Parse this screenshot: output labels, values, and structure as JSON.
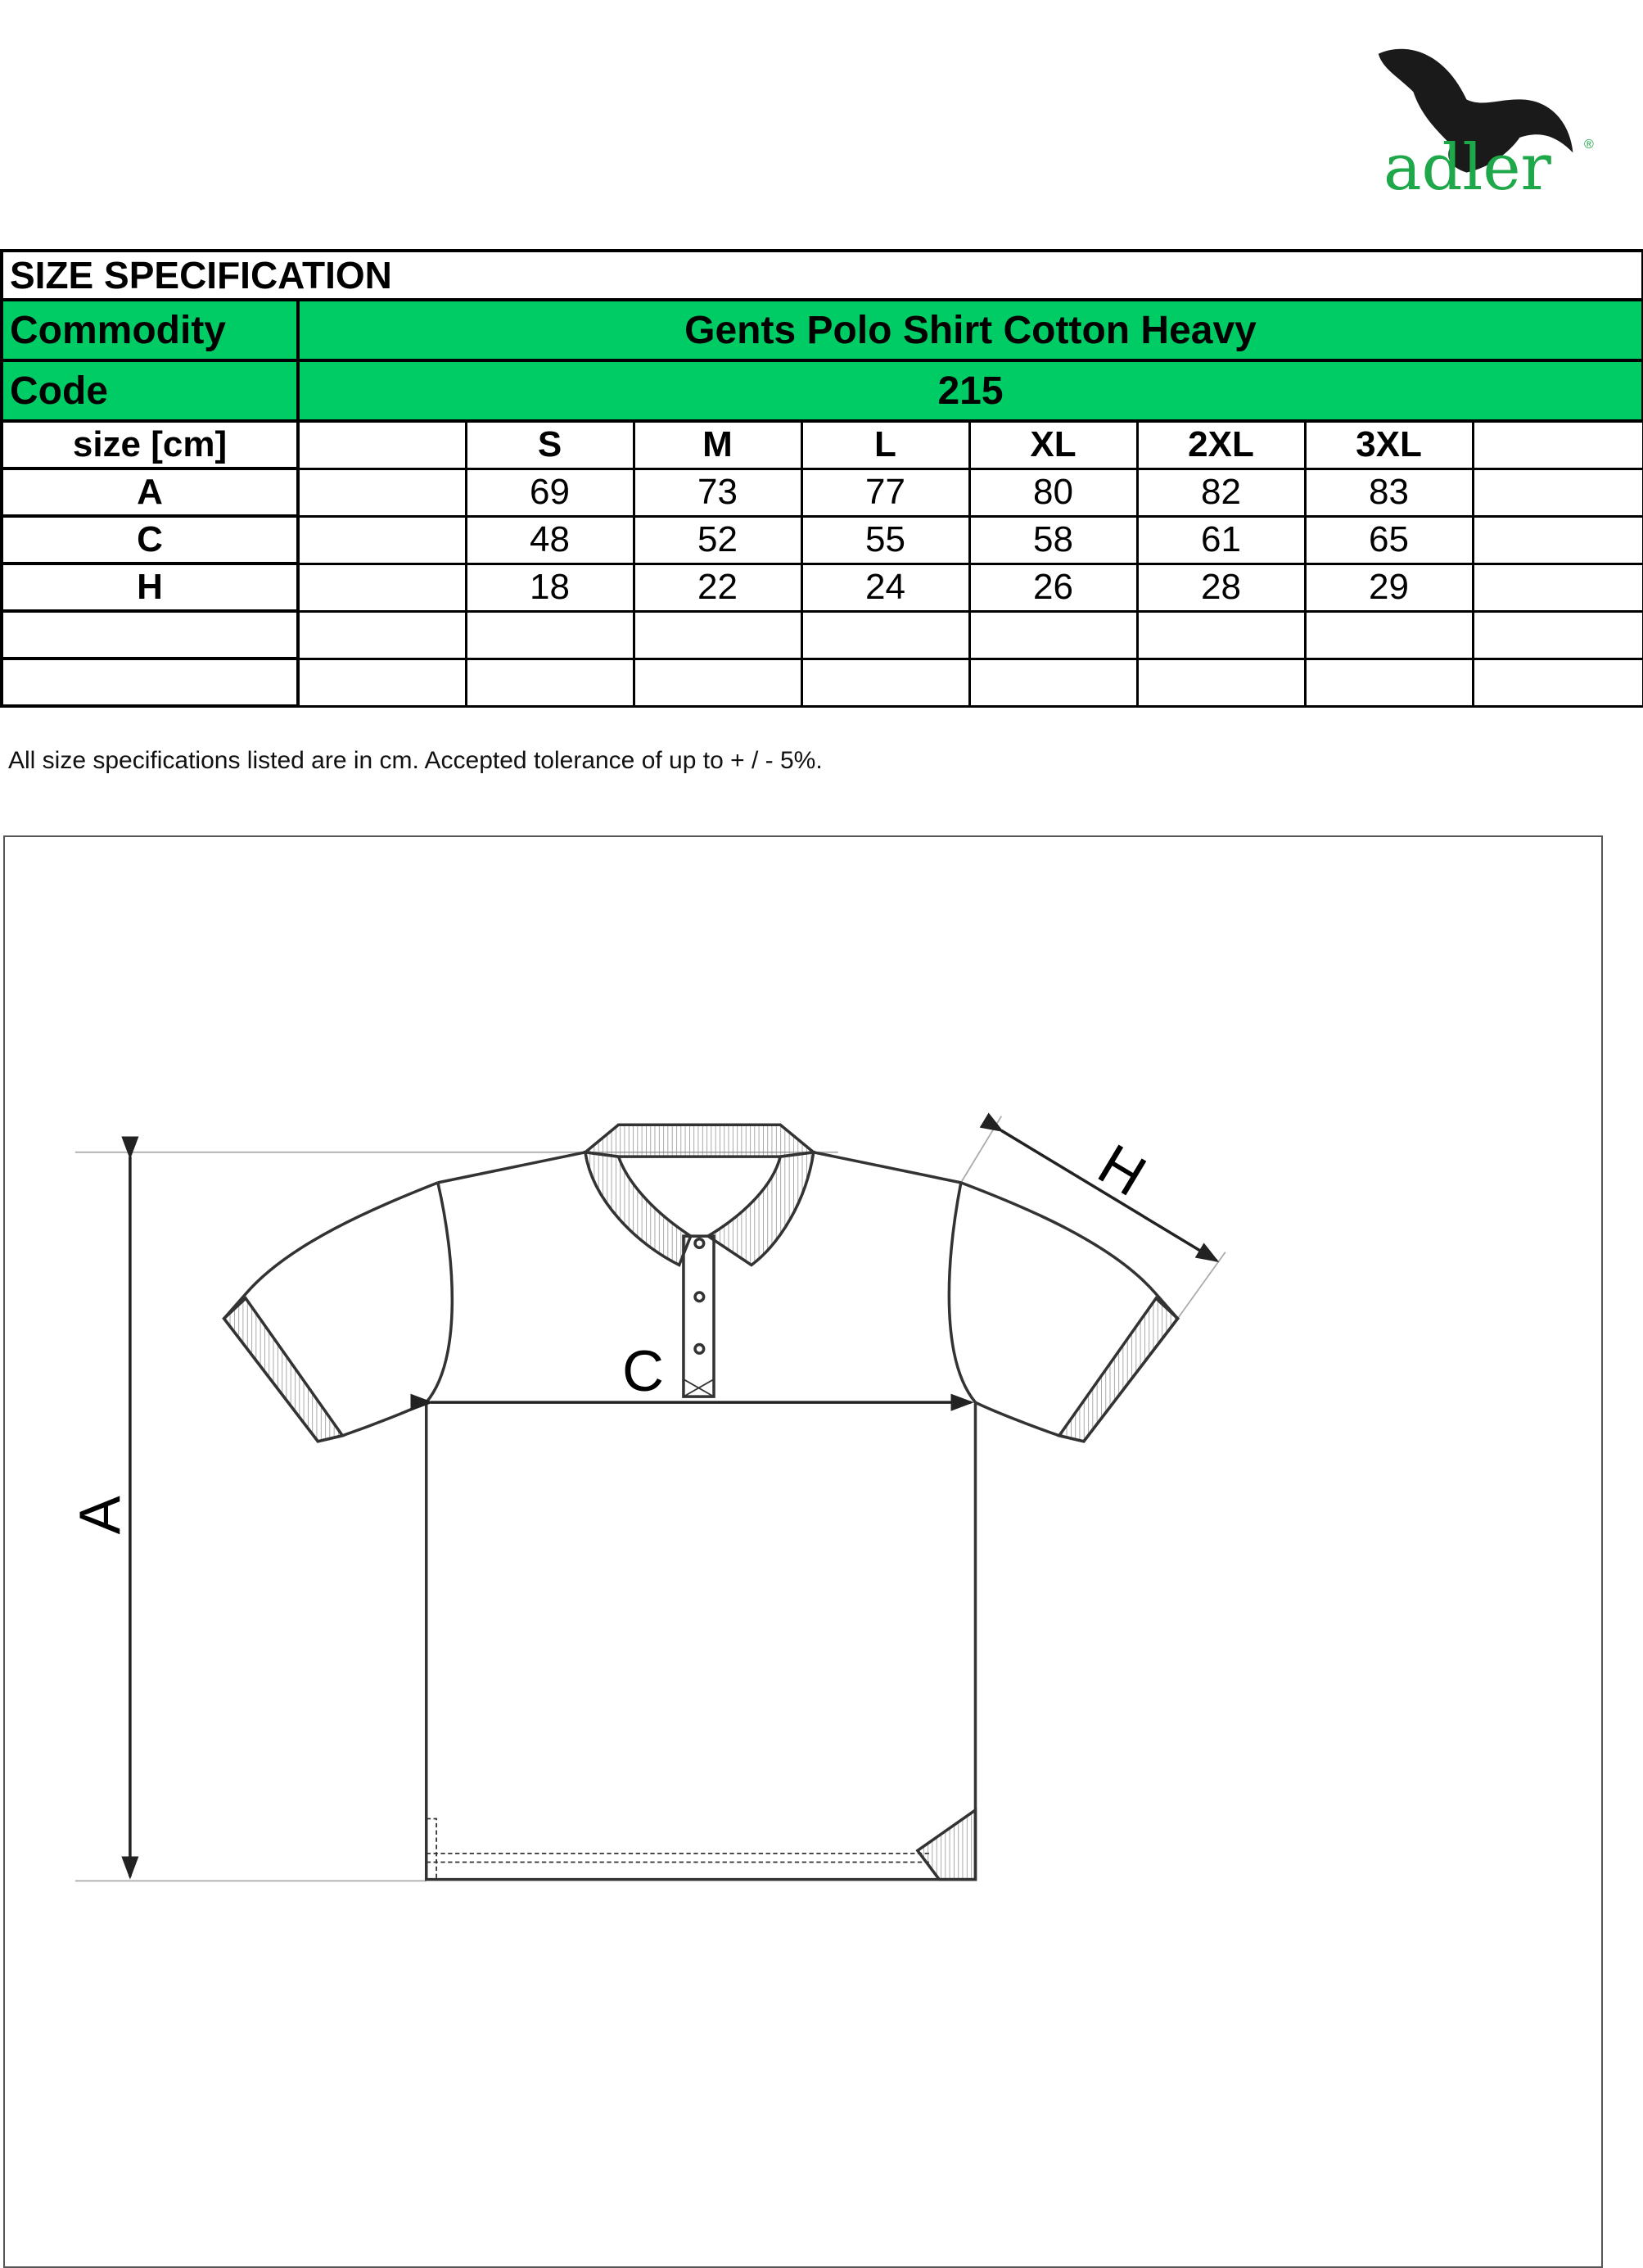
{
  "brand": {
    "name": "adler",
    "registered": "®",
    "accent": "#1fa84a"
  },
  "table": {
    "title": "SIZE SPECIFICATION",
    "commodity_label": "Commodity",
    "commodity_value": "Gents Polo Shirt Cotton Heavy",
    "code_label": "Code",
    "code_value": "215",
    "header_color": "#00cc66",
    "size_label": "size [cm]",
    "sizes": [
      "",
      "S",
      "M",
      "L",
      "XL",
      "2XL",
      "3XL",
      ""
    ],
    "rows": [
      {
        "label": "A",
        "values": [
          "",
          "69",
          "73",
          "77",
          "80",
          "82",
          "83",
          ""
        ]
      },
      {
        "label": "C",
        "values": [
          "",
          "48",
          "52",
          "55",
          "58",
          "61",
          "65",
          ""
        ]
      },
      {
        "label": "H",
        "values": [
          "",
          "18",
          "22",
          "24",
          "26",
          "28",
          "29",
          ""
        ]
      },
      {
        "label": "",
        "values": [
          "",
          "",
          "",
          "",
          "",
          "",
          "",
          ""
        ]
      },
      {
        "label": "",
        "values": [
          "",
          "",
          "",
          "",
          "",
          "",
          "",
          ""
        ]
      }
    ]
  },
  "note": "All size specifications listed are in cm. Accepted tolerance of up to + / - 5%.",
  "diagram": {
    "label_a": "A",
    "label_c": "C",
    "label_h": "H"
  }
}
